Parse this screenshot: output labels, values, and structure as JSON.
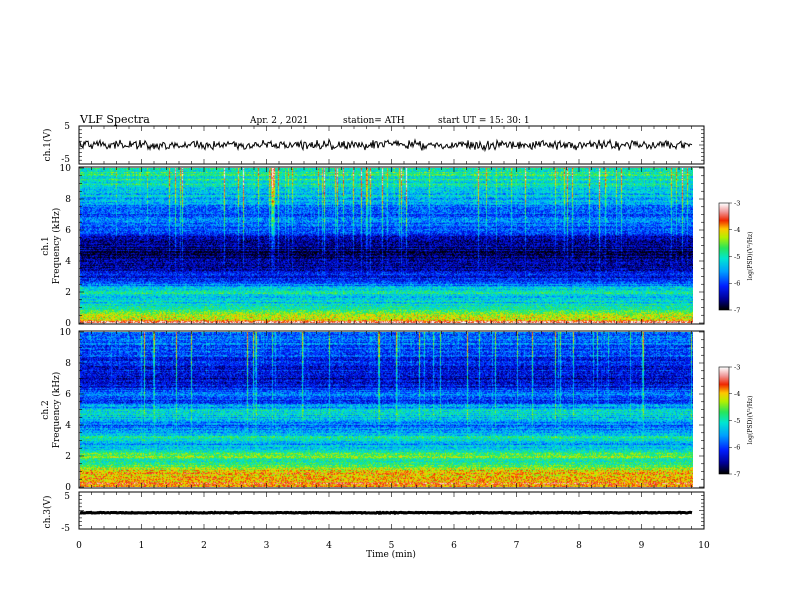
{
  "header": {
    "title": "VLF  Spectra",
    "date": "Apr. 2  , 2021",
    "station": "station= ATH",
    "start": "start  UT  =    15: 30: 1"
  },
  "chart_data": {
    "type": "heatmap",
    "xlabel": "Time  (min)",
    "xlim": [
      0,
      10
    ],
    "xticks": [
      "0",
      "1",
      "2",
      "3",
      "4",
      "5",
      "6",
      "7",
      "8",
      "9",
      "10"
    ],
    "data_end_min": 9.82,
    "panels": [
      {
        "id": "ch1-waveform",
        "type": "line",
        "ylabel": "ch.1(V)",
        "ylim": [
          -5,
          5
        ],
        "yticks": [
          "5",
          "-5"
        ],
        "series_color": "#000000",
        "baseline_v": 0.0,
        "noise_amplitude_v": 1.5
      },
      {
        "id": "ch1-spectrogram",
        "type": "heatmap",
        "ylabel_line1": "ch.1",
        "ylabel_line2": "Frequency  (kHz)",
        "ylim_khz": [
          0,
          10
        ],
        "yticks": [
          "0",
          "2",
          "4",
          "6",
          "8",
          "10"
        ],
        "colorbar": {
          "label": "log(PSD)(V²/Hz)",
          "range": [
            -7,
            -3
          ],
          "ticks": [
            "-3",
            "-4",
            "-5",
            "-6",
            "-7"
          ]
        },
        "mean_log_psd_by_freq_khz": [
          [
            0.0,
            -3.4
          ],
          [
            0.3,
            -4.2
          ],
          [
            0.6,
            -4.6
          ],
          [
            1.0,
            -5.0
          ],
          [
            1.5,
            -5.3
          ],
          [
            2.0,
            -5.0
          ],
          [
            2.3,
            -5.4
          ],
          [
            2.6,
            -6.0
          ],
          [
            3.0,
            -6.2
          ],
          [
            3.5,
            -6.55
          ],
          [
            4.0,
            -6.7
          ],
          [
            4.5,
            -6.75
          ],
          [
            5.0,
            -6.6
          ],
          [
            5.5,
            -6.3
          ],
          [
            6.0,
            -6.0
          ],
          [
            6.5,
            -5.75
          ],
          [
            7.0,
            -5.95
          ],
          [
            7.5,
            -5.7
          ],
          [
            8.0,
            -5.45
          ],
          [
            8.5,
            -5.25
          ],
          [
            9.0,
            -5.1
          ],
          [
            9.5,
            -4.95
          ],
          [
            10.0,
            -4.9
          ]
        ]
      },
      {
        "id": "ch2-spectrogram",
        "type": "heatmap",
        "ylabel_line1": "ch.2",
        "ylabel_line2": "Frequency  (kHz)",
        "ylim_khz": [
          0,
          10
        ],
        "yticks": [
          "0",
          "2",
          "4",
          "6",
          "8",
          "10"
        ],
        "colorbar": {
          "label": "log(PSD)(V²/Hz)",
          "range": [
            -7,
            -3
          ],
          "ticks": [
            "-3",
            "-4",
            "-5",
            "-6",
            "-7"
          ]
        },
        "mean_log_psd_by_freq_khz": [
          [
            0.0,
            -3.6
          ],
          [
            0.5,
            -4.0
          ],
          [
            0.9,
            -3.8
          ],
          [
            1.3,
            -4.6
          ],
          [
            1.7,
            -4.8
          ],
          [
            2.0,
            -4.5
          ],
          [
            2.4,
            -5.3
          ],
          [
            2.8,
            -5.5
          ],
          [
            3.2,
            -5.0
          ],
          [
            3.6,
            -5.5
          ],
          [
            4.0,
            -5.8
          ],
          [
            4.4,
            -5.3
          ],
          [
            4.8,
            -5.0
          ],
          [
            5.2,
            -5.6
          ],
          [
            5.6,
            -6.1
          ],
          [
            6.0,
            -5.8
          ],
          [
            6.5,
            -6.2
          ],
          [
            7.0,
            -6.4
          ],
          [
            7.5,
            -6.3
          ],
          [
            8.0,
            -6.2
          ],
          [
            8.5,
            -6.0
          ],
          [
            9.0,
            -5.9
          ],
          [
            9.5,
            -5.8
          ],
          [
            10.0,
            -5.7
          ]
        ]
      },
      {
        "id": "ch3-waveform",
        "type": "line",
        "ylabel": "ch.3(V)",
        "ylim": [
          -5,
          5
        ],
        "yticks": [
          "5",
          "-5"
        ],
        "series_color": "#000000",
        "baseline_v": -0.6,
        "noise_amplitude_v": 0.15
      }
    ]
  }
}
